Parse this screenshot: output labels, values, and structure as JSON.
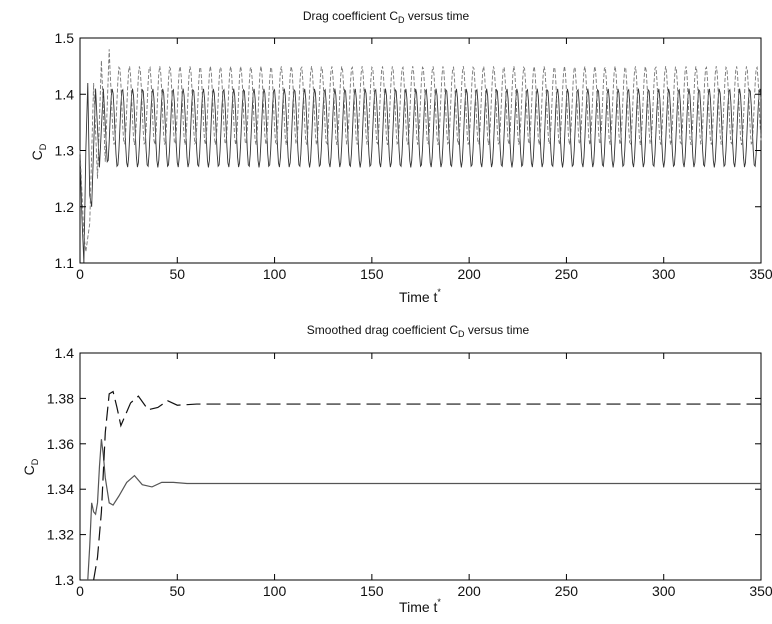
{
  "chart_data": [
    {
      "type": "line",
      "title": "Drag coefficient C",
      "title_sub": "D",
      "title_tail": " versus time",
      "xlabel": "Time t",
      "xlabel_sup": "*",
      "ylabel": "C",
      "ylabel_sub": "D",
      "xlim": [
        0,
        350
      ],
      "ylim": [
        1.1,
        1.5
      ],
      "xticks": [
        0,
        50,
        100,
        150,
        200,
        250,
        300,
        350
      ],
      "yticks": [
        1.1,
        1.2,
        1.3,
        1.4,
        1.5
      ],
      "ytick_labels": [
        "1.1",
        "1.2",
        "1.3",
        "1.4",
        "1.5"
      ],
      "grid": false,
      "series": [
        {
          "style": "solid",
          "color": "#333333",
          "x": [
            0,
            1,
            2,
            3,
            4,
            5,
            6,
            8,
            10,
            12,
            14
          ],
          "y": [
            1.3,
            1.18,
            1.1,
            1.3,
            1.42,
            1.22,
            1.2,
            1.41,
            1.27,
            1.41,
            1.28
          ],
          "steady_state": {
            "period": 5.2,
            "min": 1.27,
            "max": 1.41,
            "until": 350
          }
        },
        {
          "style": "dashed",
          "color": "#777777",
          "x": [
            0,
            2,
            3,
            5,
            7,
            9,
            11,
            13,
            15
          ],
          "y": [
            1.3,
            1.15,
            1.12,
            1.17,
            1.42,
            1.25,
            1.46,
            1.28,
            1.48
          ],
          "steady_state": {
            "period": 5.2,
            "min": 1.31,
            "max": 1.45,
            "until": 350
          }
        }
      ]
    },
    {
      "type": "line",
      "title": "Smoothed drag coefficient C",
      "title_sub": "D",
      "title_tail": " versus time",
      "xlabel": "Time t",
      "xlabel_sup": "*",
      "ylabel": "C",
      "ylabel_sub": "D",
      "xlim": [
        0,
        350
      ],
      "ylim": [
        1.3,
        1.4
      ],
      "xticks": [
        0,
        50,
        100,
        150,
        200,
        250,
        300,
        350
      ],
      "yticks": [
        1.3,
        1.32,
        1.34,
        1.36,
        1.38,
        1.4
      ],
      "ytick_labels": [
        "1.3",
        "1.32",
        "1.34",
        "1.36",
        "1.38",
        "1.4"
      ],
      "grid": false,
      "series": [
        {
          "style": "solid",
          "color": "#555555",
          "x": [
            4,
            5,
            6,
            7,
            8,
            9,
            10,
            11,
            12,
            13,
            15,
            17,
            20,
            24,
            28,
            32,
            37,
            42,
            48,
            55,
            350
          ],
          "y": [
            1.3,
            1.315,
            1.334,
            1.33,
            1.329,
            1.334,
            1.35,
            1.362,
            1.355,
            1.345,
            1.334,
            1.333,
            1.337,
            1.343,
            1.346,
            1.342,
            1.341,
            1.343,
            1.343,
            1.3425,
            1.3425
          ]
        },
        {
          "style": "dashed",
          "color": "#111111",
          "x": [
            7,
            9,
            11,
            13,
            15,
            17,
            19,
            21,
            23,
            26,
            30,
            35,
            40,
            45,
            50,
            60,
            350
          ],
          "y": [
            1.3,
            1.31,
            1.33,
            1.365,
            1.382,
            1.383,
            1.376,
            1.368,
            1.372,
            1.378,
            1.381,
            1.375,
            1.376,
            1.379,
            1.377,
            1.3775,
            1.3775
          ]
        }
      ]
    }
  ]
}
